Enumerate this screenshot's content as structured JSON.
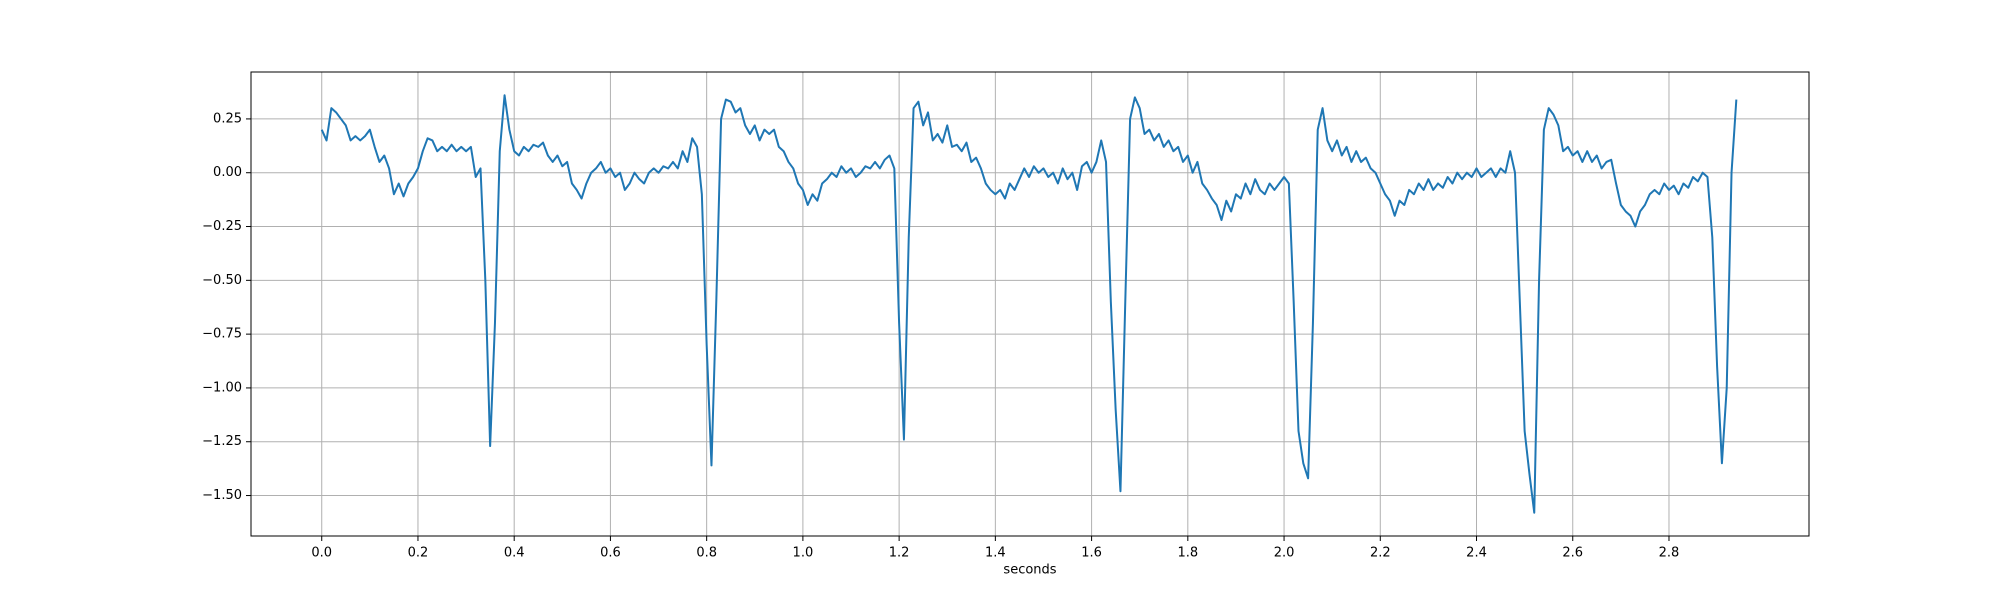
{
  "chart_data": {
    "type": "line",
    "xlabel": "seconds",
    "grid": true,
    "color": "#1f77b4",
    "xlim": [
      -0.147,
      3.091
    ],
    "ylim": [
      -1.688,
      0.468
    ],
    "xticks": [
      {
        "value": 0,
        "label": "0.0"
      },
      0.2,
      0.4,
      0.6,
      0.8,
      {
        "value": 1,
        "label": "1.0"
      },
      1.2,
      1.4,
      1.6,
      1.8,
      {
        "value": 2,
        "label": "2.0"
      },
      2.2,
      2.4,
      2.6,
      2.8
    ],
    "yticks": [
      {
        "value": 0.25,
        "label": "0.25"
      },
      {
        "value": 0,
        "label": "0.00"
      },
      {
        "value": -0.25,
        "label": "−0.25"
      },
      {
        "value": -0.5,
        "label": "−0.50"
      },
      {
        "value": -0.75,
        "label": "−0.75"
      },
      {
        "value": -1,
        "label": "−1.00"
      },
      {
        "value": -1.25,
        "label": "−1.25"
      },
      {
        "value": -1.5,
        "label": "−1.50"
      }
    ],
    "x": [
      0,
      0.01,
      0.02,
      0.03,
      0.04,
      0.05,
      0.06,
      0.07,
      0.08,
      0.09,
      0.1,
      0.11,
      0.12,
      0.13,
      0.14,
      0.15,
      0.16,
      0.17,
      0.18,
      0.19,
      0.2,
      0.21,
      0.22,
      0.23,
      0.24,
      0.25,
      0.26,
      0.27,
      0.28,
      0.29,
      0.3,
      0.31,
      0.32,
      0.33,
      0.34,
      0.35,
      0.36,
      0.37,
      0.38,
      0.39,
      0.4,
      0.41,
      0.42,
      0.43,
      0.44,
      0.45,
      0.46,
      0.47,
      0.48,
      0.49,
      0.5,
      0.51,
      0.52,
      0.53,
      0.54,
      0.55,
      0.56,
      0.57,
      0.58,
      0.59,
      0.6,
      0.61,
      0.62,
      0.63,
      0.64,
      0.65,
      0.66,
      0.67,
      0.68,
      0.69,
      0.7,
      0.71,
      0.72,
      0.73,
      0.74,
      0.75,
      0.76,
      0.77,
      0.78,
      0.79,
      0.8,
      0.81,
      0.82,
      0.83,
      0.84,
      0.85,
      0.86,
      0.87,
      0.88,
      0.89,
      0.9,
      0.91,
      0.92,
      0.93,
      0.94,
      0.95,
      0.96,
      0.97,
      0.98,
      0.99,
      1,
      1.01,
      1.02,
      1.03,
      1.04,
      1.05,
      1.06,
      1.07,
      1.08,
      1.09,
      1.1,
      1.11,
      1.12,
      1.13,
      1.14,
      1.15,
      1.16,
      1.17,
      1.18,
      1.19,
      1.2,
      1.21,
      1.22,
      1.23,
      1.24,
      1.25,
      1.26,
      1.27,
      1.28,
      1.29,
      1.3,
      1.31,
      1.32,
      1.33,
      1.34,
      1.35,
      1.36,
      1.37,
      1.38,
      1.39,
      1.4,
      1.41,
      1.42,
      1.43,
      1.44,
      1.45,
      1.46,
      1.47,
      1.48,
      1.49,
      1.5,
      1.51,
      1.52,
      1.53,
      1.54,
      1.55,
      1.56,
      1.57,
      1.58,
      1.59,
      1.6,
      1.61,
      1.62,
      1.63,
      1.64,
      1.65,
      1.66,
      1.67,
      1.68,
      1.69,
      1.7,
      1.71,
      1.72,
      1.73,
      1.74,
      1.75,
      1.76,
      1.77,
      1.78,
      1.79,
      1.8,
      1.81,
      1.82,
      1.83,
      1.84,
      1.85,
      1.86,
      1.87,
      1.88,
      1.89,
      1.9,
      1.91,
      1.92,
      1.93,
      1.94,
      1.95,
      1.96,
      1.97,
      1.98,
      1.99,
      2,
      2.01,
      2.02,
      2.03,
      2.04,
      2.05,
      2.06,
      2.07,
      2.08,
      2.09,
      2.1,
      2.11,
      2.12,
      2.13,
      2.14,
      2.15,
      2.16,
      2.17,
      2.18,
      2.19,
      2.2,
      2.21,
      2.22,
      2.23,
      2.24,
      2.25,
      2.26,
      2.27,
      2.28,
      2.29,
      2.3,
      2.31,
      2.32,
      2.33,
      2.34,
      2.35,
      2.36,
      2.37,
      2.38,
      2.39,
      2.4,
      2.41,
      2.42,
      2.43,
      2.44,
      2.45,
      2.46,
      2.47,
      2.48,
      2.49,
      2.5,
      2.51,
      2.52,
      2.53,
      2.54,
      2.55,
      2.56,
      2.57,
      2.58,
      2.59,
      2.6,
      2.61,
      2.62,
      2.63,
      2.64,
      2.65,
      2.66,
      2.67,
      2.68,
      2.69,
      2.7,
      2.71,
      2.72,
      2.73,
      2.74,
      2.75,
      2.76,
      2.77,
      2.78,
      2.79,
      2.8,
      2.81,
      2.82,
      2.83,
      2.84,
      2.85,
      2.86,
      2.87,
      2.88,
      2.89,
      2.9,
      2.91,
      2.92,
      2.93,
      2.94
    ],
    "values": [
      0.2,
      0.15,
      0.3,
      0.28,
      0.25,
      0.22,
      0.15,
      0.17,
      0.15,
      0.17,
      0.2,
      0.12,
      0.05,
      0.08,
      0.02,
      -0.1,
      -0.05,
      -0.11,
      -0.05,
      -0.02,
      0.02,
      0.1,
      0.16,
      0.15,
      0.1,
      0.12,
      0.1,
      0.13,
      0.1,
      0.12,
      0.1,
      0.12,
      -0.02,
      0.02,
      -0.5,
      -1.27,
      -0.7,
      0.1,
      0.36,
      0.2,
      0.1,
      0.08,
      0.12,
      0.1,
      0.13,
      0.12,
      0.14,
      0.08,
      0.05,
      0.08,
      0.03,
      0.05,
      -0.05,
      -0.08,
      -0.12,
      -0.05,
      0.0,
      0.02,
      0.05,
      0.0,
      0.02,
      -0.02,
      0.0,
      -0.08,
      -0.05,
      0.0,
      -0.03,
      -0.05,
      0.0,
      0.02,
      0.0,
      0.03,
      0.02,
      0.05,
      0.02,
      0.1,
      0.05,
      0.16,
      0.12,
      -0.1,
      -0.8,
      -1.36,
      -0.6,
      0.25,
      0.34,
      0.33,
      0.28,
      0.3,
      0.22,
      0.18,
      0.22,
      0.15,
      0.2,
      0.18,
      0.2,
      0.12,
      0.1,
      0.05,
      0.02,
      -0.05,
      -0.08,
      -0.15,
      -0.1,
      -0.13,
      -0.05,
      -0.03,
      0.0,
      -0.02,
      0.03,
      0.0,
      0.02,
      -0.02,
      0.0,
      0.03,
      0.02,
      0.05,
      0.02,
      0.06,
      0.08,
      0.02,
      -0.7,
      -1.24,
      -0.3,
      0.3,
      0.33,
      0.22,
      0.28,
      0.15,
      0.18,
      0.14,
      0.22,
      0.12,
      0.13,
      0.1,
      0.14,
      0.05,
      0.07,
      0.02,
      -0.05,
      -0.08,
      -0.1,
      -0.08,
      -0.12,
      -0.05,
      -0.08,
      -0.03,
      0.02,
      -0.02,
      0.03,
      0.0,
      0.02,
      -0.02,
      0.0,
      -0.05,
      0.02,
      -0.03,
      0.0,
      -0.08,
      0.03,
      0.05,
      0.0,
      0.05,
      0.15,
      0.05,
      -0.6,
      -1.1,
      -1.48,
      -0.6,
      0.25,
      0.35,
      0.3,
      0.18,
      0.2,
      0.15,
      0.18,
      0.12,
      0.15,
      0.1,
      0.12,
      0.05,
      0.08,
      0.0,
      0.05,
      -0.05,
      -0.08,
      -0.12,
      -0.15,
      -0.22,
      -0.13,
      -0.18,
      -0.1,
      -0.12,
      -0.05,
      -0.1,
      -0.03,
      -0.08,
      -0.1,
      -0.05,
      -0.08,
      -0.05,
      -0.02,
      -0.05,
      -0.6,
      -1.2,
      -1.35,
      -1.42,
      -0.7,
      0.2,
      0.3,
      0.15,
      0.1,
      0.15,
      0.08,
      0.12,
      0.05,
      0.1,
      0.05,
      0.07,
      0.02,
      0.0,
      -0.05,
      -0.1,
      -0.13,
      -0.2,
      -0.13,
      -0.15,
      -0.08,
      -0.1,
      -0.05,
      -0.08,
      -0.03,
      -0.08,
      -0.05,
      -0.07,
      -0.02,
      -0.05,
      0.0,
      -0.03,
      0.0,
      -0.02,
      0.02,
      -0.02,
      0.0,
      0.02,
      -0.02,
      0.02,
      0.0,
      0.1,
      0.0,
      -0.6,
      -1.2,
      -1.4,
      -1.58,
      -0.5,
      0.2,
      0.3,
      0.27,
      0.22,
      0.1,
      0.12,
      0.08,
      0.1,
      0.05,
      0.1,
      0.05,
      0.08,
      0.02,
      0.05,
      0.06,
      -0.05,
      -0.15,
      -0.18,
      -0.2,
      -0.25,
      -0.18,
      -0.15,
      -0.1,
      -0.08,
      -0.1,
      -0.05,
      -0.08,
      -0.06,
      -0.1,
      -0.05,
      -0.07,
      -0.02,
      -0.04,
      0.0,
      -0.02,
      -0.3,
      -0.9,
      -1.35,
      -1.0,
      0.0,
      0.34
    ]
  }
}
